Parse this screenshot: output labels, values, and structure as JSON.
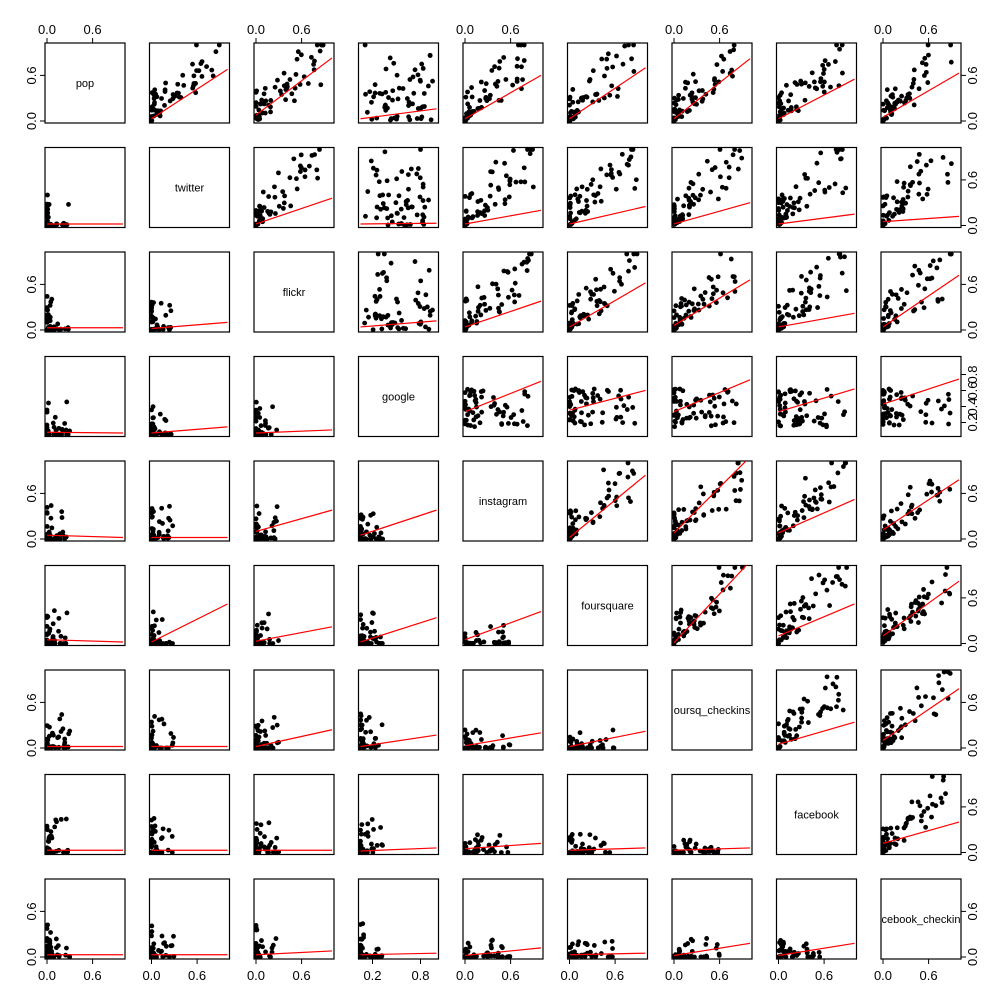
{
  "chart_data": {
    "type": "scatter",
    "title": "",
    "variables": [
      "pop",
      "twitter",
      "flickr",
      "google",
      "instagram",
      "foursquare",
      "foursq_checkins",
      "facebook",
      "facebook_checkins"
    ],
    "variable_labels": [
      "pop",
      "twitter",
      "flickr",
      "google",
      "instagram",
      "foursquare",
      "oursq_checkins",
      "facebook",
      "cebook_checkin"
    ],
    "axis_ticks": {
      "default": {
        "values": [
          0.0,
          0.6
        ],
        "labels": [
          "0.0",
          "0.6"
        ],
        "range": [
          0,
          1
        ]
      },
      "google": {
        "values": [
          0.2,
          0.8
        ],
        "labels": [
          "0.2",
          "0.8"
        ],
        "range": [
          0.05,
          1
        ]
      },
      "google_right": {
        "values": [
          0.2,
          0.4,
          0.6,
          0.8
        ],
        "labels": [
          "0.2",
          "0.4",
          "0.6",
          "0.8"
        ]
      }
    },
    "fit_line_color": "#ff0000",
    "point_color": "#000000",
    "layout_note": "pairs matrix; upper panels show columns vs rows with red least-squares fit lines",
    "lower_fits": [
      [
        null
      ],
      [
        [
          0.02,
          0.02
        ]
      ],
      [
        [
          0.03,
          0.03
        ],
        [
          0.02,
          0.1
        ]
      ],
      [
        [
          0.03,
          0.02
        ],
        [
          0.02,
          0.1
        ],
        [
          0.02,
          0.06
        ]
      ],
      [
        [
          0.05,
          0.02
        ],
        [
          0.02,
          0.02
        ],
        [
          0.1,
          0.38
        ],
        [
          0.05,
          0.38
        ]
      ],
      [
        [
          0.05,
          0.02
        ],
        [
          0.02,
          0.52
        ],
        [
          0.03,
          0.22
        ],
        [
          0.02,
          0.34
        ],
        [
          0.05,
          0.42
        ]
      ],
      [
        [
          0.02,
          0.02
        ],
        [
          0.02,
          0.02
        ],
        [
          0.02,
          0.24
        ],
        [
          0.02,
          0.17
        ],
        [
          0.03,
          0.2
        ],
        [
          0.02,
          0.22
        ]
      ],
      [
        [
          0.03,
          0.03
        ],
        [
          0.03,
          0.03
        ],
        [
          0.03,
          0.03
        ],
        [
          0.02,
          0.06
        ],
        [
          0.05,
          0.12
        ],
        [
          0.03,
          0.06
        ],
        [
          0.03,
          0.06
        ]
      ],
      [
        [
          0.03,
          0.03
        ],
        [
          0.03,
          0.03
        ],
        [
          0.03,
          0.08
        ],
        [
          0.03,
          0.05
        ],
        [
          0.02,
          0.12
        ],
        [
          0.03,
          0.05
        ],
        [
          0.02,
          0.18
        ],
        [
          0.02,
          0.18
        ]
      ]
    ],
    "upper_fits": [
      [
        null,
        [
          0.03,
          0.68
        ],
        [
          0.08,
          0.83
        ],
        [
          0.03,
          0.16
        ],
        [
          0.03,
          0.6
        ],
        [
          0.03,
          0.7
        ],
        [
          0.03,
          0.82
        ],
        [
          0.03,
          0.55
        ],
        [
          0.05,
          0.63
        ]
      ],
      [
        null,
        null,
        [
          0.02,
          0.36
        ],
        [
          0.02,
          0.03
        ],
        [
          0.02,
          0.2
        ],
        [
          0.02,
          0.25
        ],
        [
          0.02,
          0.3
        ],
        [
          0.02,
          0.15
        ],
        [
          0.05,
          0.12
        ]
      ],
      [
        null,
        null,
        null,
        [
          0.04,
          0.12
        ],
        [
          0.04,
          0.38
        ],
        [
          0.04,
          0.62
        ],
        [
          0.06,
          0.66
        ],
        [
          0.04,
          0.22
        ],
        [
          0.04,
          0.72
        ]
      ],
      [
        null,
        null,
        null,
        null,
        [
          0.3,
          0.7
        ],
        [
          0.32,
          0.58
        ],
        [
          0.3,
          0.72
        ],
        [
          0.3,
          0.6
        ],
        [
          0.4,
          0.73
        ]
      ],
      [
        null,
        null,
        null,
        null,
        null,
        [
          0.02,
          0.84
        ],
        [
          0.08,
          1.08
        ],
        [
          0.08,
          0.52
        ],
        [
          0.12,
          0.78
        ]
      ],
      [
        null,
        null,
        null,
        null,
        null,
        null,
        [
          0.01,
          1.08
        ],
        [
          0.1,
          0.52
        ],
        [
          0.1,
          0.82
        ]
      ],
      [
        null,
        null,
        null,
        null,
        null,
        null,
        null,
        [
          0.05,
          0.34
        ],
        [
          0.1,
          0.78
        ]
      ],
      [
        null,
        null,
        null,
        null,
        null,
        null,
        null,
        null,
        [
          0.12,
          0.4
        ]
      ]
    ]
  }
}
